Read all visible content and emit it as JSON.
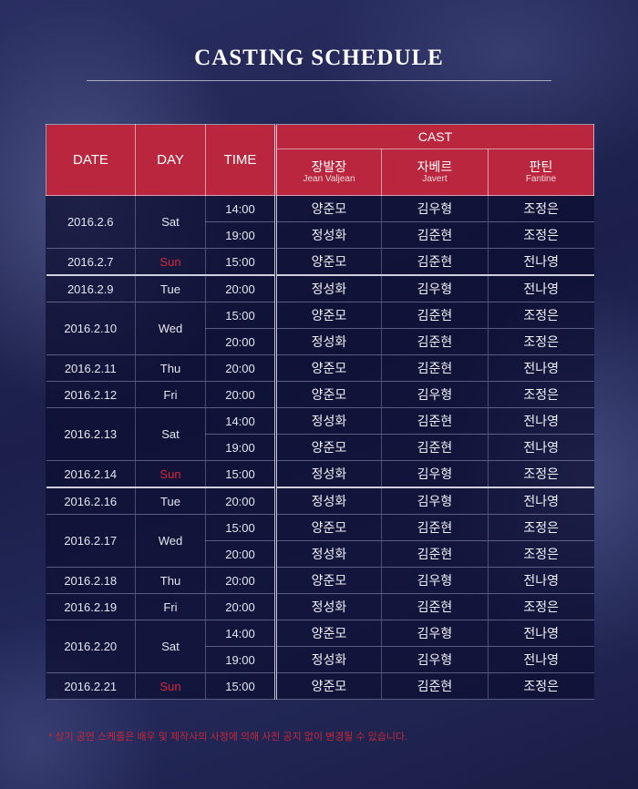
{
  "title": "CASTING SCHEDULE",
  "headers": {
    "date": "DATE",
    "day": "DAY",
    "time": "TIME",
    "cast": "CAST",
    "roles": [
      {
        "ko": "장발장",
        "en": "Jean Valjean"
      },
      {
        "ko": "자베르",
        "en": "Javert"
      },
      {
        "ko": "판틴",
        "en": "Fantine"
      }
    ]
  },
  "colors": {
    "header_bg": "#b9263e",
    "sunday": "#d8283c",
    "note": "#c4273a"
  },
  "groups": [
    {
      "date": "2016.2.6",
      "day": "Sat",
      "sun": false,
      "rows": [
        [
          "14:00",
          "양준모",
          "김우형",
          "조정은"
        ],
        [
          "19:00",
          "정성화",
          "김준현",
          "조정은"
        ]
      ]
    },
    {
      "date": "2016.2.7",
      "day": "Sun",
      "sun": true,
      "rows": [
        [
          "15:00",
          "양준모",
          "김준현",
          "전나영"
        ]
      ]
    },
    {
      "date": "2016.2.9",
      "day": "Tue",
      "sun": false,
      "week_start": true,
      "rows": [
        [
          "20:00",
          "정성화",
          "김우형",
          "전나영"
        ]
      ]
    },
    {
      "date": "2016.2.10",
      "day": "Wed",
      "sun": false,
      "rows": [
        [
          "15:00",
          "양준모",
          "김준현",
          "조정은"
        ],
        [
          "20:00",
          "정성화",
          "김준현",
          "조정은"
        ]
      ]
    },
    {
      "date": "2016.2.11",
      "day": "Thu",
      "sun": false,
      "rows": [
        [
          "20:00",
          "양준모",
          "김준현",
          "전나영"
        ]
      ]
    },
    {
      "date": "2016.2.12",
      "day": "Fri",
      "sun": false,
      "rows": [
        [
          "20:00",
          "양준모",
          "김우형",
          "조정은"
        ]
      ]
    },
    {
      "date": "2016.2.13",
      "day": "Sat",
      "sun": false,
      "rows": [
        [
          "14:00",
          "정성화",
          "김준현",
          "전나영"
        ],
        [
          "19:00",
          "양준모",
          "김준현",
          "전나영"
        ]
      ]
    },
    {
      "date": "2016.2.14",
      "day": "Sun",
      "sun": true,
      "rows": [
        [
          "15:00",
          "정성화",
          "김우형",
          "조정은"
        ]
      ]
    },
    {
      "date": "2016.2.16",
      "day": "Tue",
      "sun": false,
      "week_start": true,
      "rows": [
        [
          "20:00",
          "정성화",
          "김우형",
          "전나영"
        ]
      ]
    },
    {
      "date": "2016.2.17",
      "day": "Wed",
      "sun": false,
      "rows": [
        [
          "15:00",
          "양준모",
          "김준현",
          "조정은"
        ],
        [
          "20:00",
          "정성화",
          "김준현",
          "조정은"
        ]
      ]
    },
    {
      "date": "2016.2.18",
      "day": "Thu",
      "sun": false,
      "rows": [
        [
          "20:00",
          "양준모",
          "김우형",
          "전나영"
        ]
      ]
    },
    {
      "date": "2016.2.19",
      "day": "Fri",
      "sun": false,
      "rows": [
        [
          "20:00",
          "정성화",
          "김준현",
          "조정은"
        ]
      ]
    },
    {
      "date": "2016.2.20",
      "day": "Sat",
      "sun": false,
      "rows": [
        [
          "14:00",
          "양준모",
          "김우형",
          "전나영"
        ],
        [
          "19:00",
          "정성화",
          "김우형",
          "전나영"
        ]
      ]
    },
    {
      "date": "2016.2.21",
      "day": "Sun",
      "sun": true,
      "rows": [
        [
          "15:00",
          "양준모",
          "김준현",
          "조정은"
        ]
      ]
    }
  ],
  "note": "* 상기 공연 스케줄은 배우 및 제작사의 사정에 의해 사전 공지 없이 변경될 수 있습니다."
}
